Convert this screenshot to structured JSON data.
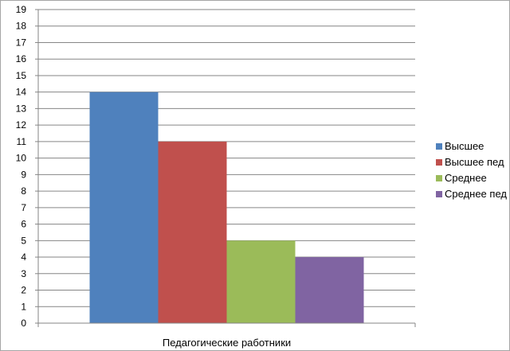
{
  "chart_data": {
    "type": "bar",
    "categories": [
      "Педагогические работники"
    ],
    "series": [
      {
        "name": "Высшее",
        "values": [
          14
        ],
        "color": "#4f81bd"
      },
      {
        "name": "Высшее пед",
        "values": [
          11
        ],
        "color": "#c0504d"
      },
      {
        "name": "Среднее",
        "values": [
          5
        ],
        "color": "#9bbb59"
      },
      {
        "name": "Среднее пед",
        "values": [
          4
        ],
        "color": "#8064a2"
      }
    ],
    "title": "",
    "xlabel": "",
    "ylabel": "",
    "ylim": [
      0,
      19
    ],
    "ytick_step": 1,
    "grid": true,
    "legend": "right"
  }
}
